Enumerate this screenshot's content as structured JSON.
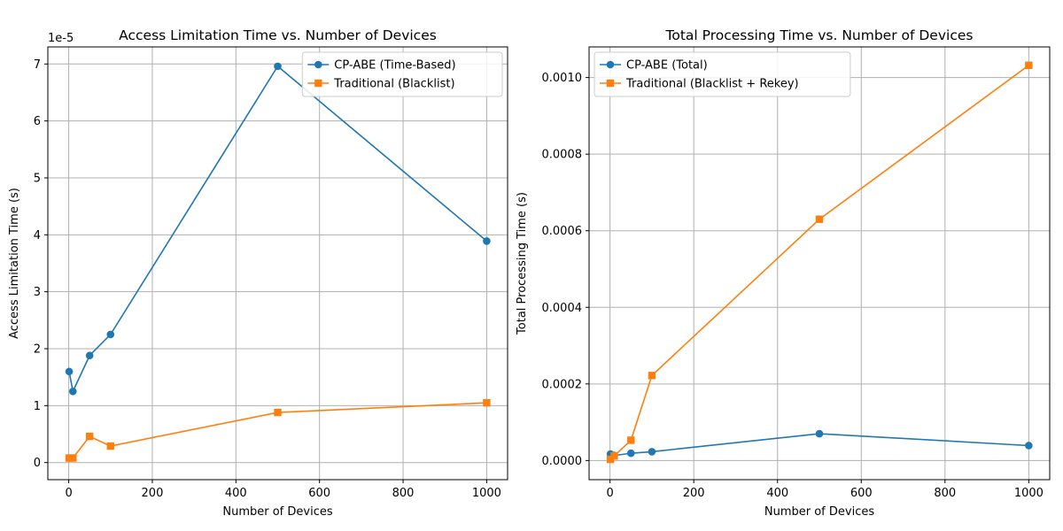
{
  "chart_data": [
    {
      "type": "line",
      "title": "Access Limitation Time vs. Number of Devices",
      "xlabel": "Number of Devices",
      "ylabel": "Access Limitation Time (s)",
      "y_offset_label": "1e-5",
      "xlim": [
        -50,
        1050
      ],
      "ylim": [
        -3e-06,
        7.3e-05
      ],
      "x_ticks": [
        0,
        200,
        400,
        600,
        800,
        1000
      ],
      "x_tick_labels": [
        "0",
        "200",
        "400",
        "600",
        "800",
        "1000"
      ],
      "y_ticks": [
        0,
        1e-05,
        2e-05,
        3e-05,
        4e-05,
        5e-05,
        6e-05,
        7e-05
      ],
      "y_tick_labels": [
        "0",
        "1",
        "2",
        "3",
        "4",
        "5",
        "6",
        "7"
      ],
      "grid": true,
      "legend_position": "top-right",
      "series": [
        {
          "name": "CP-ABE (Time-Based)",
          "color": "#1f77b4",
          "marker": "circle",
          "x": [
            1,
            10,
            50,
            100,
            500,
            1000
          ],
          "y": [
            1.6e-05,
            1.25e-05,
            1.88e-05,
            2.25e-05,
            6.96e-05,
            3.89e-05
          ]
        },
        {
          "name": "Traditional (Blacklist)",
          "color": "#ff7f0e",
          "marker": "square",
          "x": [
            1,
            10,
            50,
            100,
            500,
            1000
          ],
          "y": [
            8e-07,
            8e-07,
            4.6e-06,
            2.9e-06,
            8.8e-06,
            1.05e-05
          ]
        }
      ]
    },
    {
      "type": "line",
      "title": "Total Processing Time vs. Number of Devices",
      "xlabel": "Number of Devices",
      "ylabel": "Total Processing Time (s)",
      "xlim": [
        -50,
        1050
      ],
      "ylim": [
        -5e-05,
        0.00108
      ],
      "x_ticks": [
        0,
        200,
        400,
        600,
        800,
        1000
      ],
      "x_tick_labels": [
        "0",
        "200",
        "400",
        "600",
        "800",
        "1000"
      ],
      "y_ticks": [
        0,
        0.0002,
        0.0004,
        0.0006,
        0.0008,
        0.001
      ],
      "y_tick_labels": [
        "0.0000",
        "0.0002",
        "0.0004",
        "0.0006",
        "0.0008",
        "0.0010"
      ],
      "grid": true,
      "legend_position": "top-left",
      "series": [
        {
          "name": "CP-ABE (Total)",
          "color": "#1f77b4",
          "marker": "circle",
          "x": [
            1,
            10,
            50,
            100,
            500,
            1000
          ],
          "y": [
            1.7e-05,
            1.3e-05,
            1.9e-05,
            2.3e-05,
            7e-05,
            3.9e-05
          ]
        },
        {
          "name": "Traditional (Blacklist + Rekey)",
          "color": "#ff7f0e",
          "marker": "square",
          "x": [
            1,
            10,
            50,
            100,
            500,
            1000
          ],
          "y": [
            3e-06,
            1.2e-05,
            5.3e-05,
            0.000222,
            0.00063,
            0.001032
          ]
        }
      ]
    }
  ]
}
